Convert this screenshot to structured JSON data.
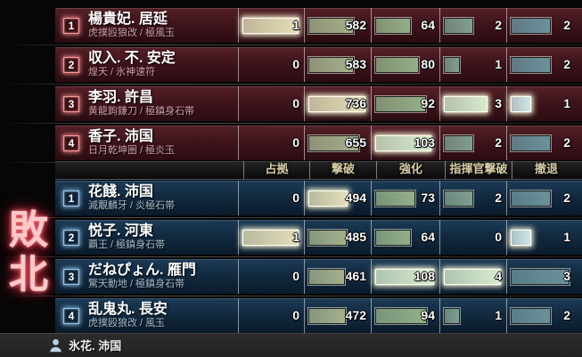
{
  "result_label": "敗北",
  "columns": [
    "占拠",
    "撃破",
    "強化",
    "指揮官撃破",
    "撤退"
  ],
  "column_max": [
    1,
    736,
    108,
    4,
    3
  ],
  "colors": {
    "bar_normal": [
      "#cfcba2",
      "#a3b18c",
      "#93af88",
      "#7f9f8f",
      "#6a929c"
    ],
    "bar_best": [
      "#e2deb8",
      "#e2deb8",
      "#d6ebcd",
      "#d6ebcd",
      "#cfe7e7"
    ],
    "red_accent": "#ff9494",
    "blue_accent": "#93c6ec"
  },
  "red_team": {
    "players": [
      {
        "rank": "1",
        "name": "楊貴妃. 居延",
        "loadout": "虎撲殴狼改 / 極風玉",
        "stats": [
          {
            "value": 1,
            "best": true
          },
          {
            "value": 582
          },
          {
            "value": 64
          },
          {
            "value": 2
          },
          {
            "value": 2
          }
        ]
      },
      {
        "rank": "2",
        "name": "収入. 不. 安定",
        "loadout": "煌天 / 氷神速符",
        "stats": [
          {
            "value": 0
          },
          {
            "value": 583
          },
          {
            "value": 80
          },
          {
            "value": 1
          },
          {
            "value": 2
          }
        ]
      },
      {
        "rank": "3",
        "name": "李羽. 許昌",
        "loadout": "黄龍鉤鎌刀 / 極鎮身石帯",
        "stats": [
          {
            "value": 0
          },
          {
            "value": 736,
            "best": true
          },
          {
            "value": 92
          },
          {
            "value": 3,
            "best": true
          },
          {
            "value": 1,
            "best": true
          }
        ]
      },
      {
        "rank": "4",
        "name": "香子. 沛国",
        "loadout": "日月乾坤圏 / 極炎玉",
        "stats": [
          {
            "value": 0
          },
          {
            "value": 655
          },
          {
            "value": 103,
            "best": true
          },
          {
            "value": 2
          },
          {
            "value": 2
          }
        ]
      }
    ]
  },
  "blue_team": {
    "players": [
      {
        "rank": "1",
        "name": "花餞. 沛国",
        "loadout": "滅覯麟牙 / 炎極石帯",
        "stats": [
          {
            "value": 0
          },
          {
            "value": 494,
            "best": true
          },
          {
            "value": 73
          },
          {
            "value": 2
          },
          {
            "value": 2
          }
        ]
      },
      {
        "rank": "2",
        "name": "悦子. 河東",
        "loadout": "覇王 / 極鎮身石帯",
        "stats": [
          {
            "value": 1,
            "best": true
          },
          {
            "value": 485
          },
          {
            "value": 64
          },
          {
            "value": 0
          },
          {
            "value": 1,
            "best": true
          }
        ]
      },
      {
        "rank": "3",
        "name": "だねぴょん. 雁門",
        "loadout": "驚天動地 / 極鎮身石帯",
        "stats": [
          {
            "value": 0
          },
          {
            "value": 461
          },
          {
            "value": 108,
            "best": true
          },
          {
            "value": 4,
            "best": true
          },
          {
            "value": 3
          }
        ]
      },
      {
        "rank": "4",
        "name": "乱鬼丸. 長安",
        "loadout": "虎撲殴狼改 / 風玉",
        "stats": [
          {
            "value": 0
          },
          {
            "value": 472
          },
          {
            "value": 94
          },
          {
            "value": 1
          },
          {
            "value": 2
          }
        ]
      }
    ]
  },
  "footer": {
    "player": "氷花. 沛国"
  }
}
